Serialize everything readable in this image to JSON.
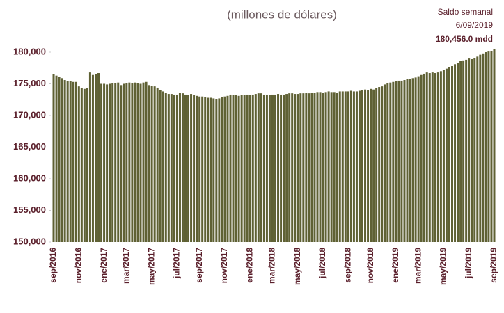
{
  "chart_data": {
    "type": "bar",
    "title": "(millones de dólares)",
    "annotations": [
      "Saldo semanal",
      "6/09/2019",
      "180,456.0 mdd"
    ],
    "color": "#5f6134",
    "categories": [
      "sep/2016",
      null,
      null,
      null,
      null,
      null,
      null,
      null,
      null,
      "nov/2016",
      null,
      null,
      null,
      null,
      null,
      null,
      null,
      null,
      "ene/2017",
      null,
      null,
      null,
      null,
      null,
      null,
      null,
      "mar/2017",
      null,
      null,
      null,
      null,
      null,
      null,
      null,
      null,
      "may/2017",
      null,
      null,
      null,
      null,
      null,
      null,
      null,
      null,
      "jul/2017",
      null,
      null,
      null,
      null,
      null,
      null,
      null,
      "sep/2017",
      null,
      null,
      null,
      null,
      null,
      null,
      null,
      null,
      "nov/2017",
      null,
      null,
      null,
      null,
      null,
      null,
      null,
      null,
      "ene/2018",
      null,
      null,
      null,
      null,
      null,
      null,
      null,
      "mar/2018",
      null,
      null,
      null,
      null,
      null,
      null,
      null,
      null,
      "may/2018",
      null,
      null,
      null,
      null,
      null,
      null,
      null,
      null,
      "jul/2018",
      null,
      null,
      null,
      null,
      null,
      null,
      null,
      null,
      "sep/2018",
      null,
      null,
      null,
      null,
      null,
      null,
      null,
      "nov/2018",
      null,
      null,
      null,
      null,
      null,
      null,
      null,
      null,
      "ene/2019",
      null,
      null,
      null,
      null,
      null,
      null,
      null,
      "mar/2019",
      null,
      null,
      null,
      null,
      null,
      null,
      null,
      null,
      "may/2019",
      null,
      null,
      null,
      null,
      null,
      null,
      null,
      null,
      "jul/2019",
      null,
      null,
      null,
      null,
      null,
      null,
      null,
      null,
      "sep/2019"
    ],
    "values": [
      176500,
      176300,
      176100,
      175900,
      175600,
      175400,
      175400,
      175300,
      175300,
      174600,
      174300,
      174200,
      174300,
      176800,
      176400,
      176500,
      176700,
      175000,
      175000,
      174900,
      175000,
      175100,
      175100,
      175200,
      174800,
      175000,
      175100,
      175200,
      175100,
      175200,
      175100,
      175000,
      175200,
      175300,
      174800,
      174700,
      174600,
      174400,
      174000,
      173800,
      173600,
      173400,
      173400,
      173300,
      173300,
      173600,
      173500,
      173300,
      173200,
      173400,
      173200,
      173100,
      173000,
      173000,
      172900,
      172800,
      172800,
      172700,
      172600,
      172700,
      172900,
      173000,
      173100,
      173300,
      173200,
      173200,
      173100,
      173200,
      173200,
      173300,
      173200,
      173300,
      173400,
      173500,
      173500,
      173300,
      173300,
      173200,
      173300,
      173300,
      173400,
      173300,
      173300,
      173400,
      173500,
      173500,
      173400,
      173400,
      173500,
      173500,
      173600,
      173500,
      173600,
      173600,
      173700,
      173700,
      173600,
      173700,
      173800,
      173700,
      173700,
      173600,
      173800,
      173800,
      173800,
      173800,
      173900,
      173800,
      173800,
      173900,
      174000,
      174100,
      174000,
      174200,
      174100,
      174300,
      174500,
      174600,
      174900,
      175100,
      175200,
      175300,
      175400,
      175500,
      175500,
      175600,
      175800,
      175800,
      175900,
      176000,
      176200,
      176400,
      176600,
      176800,
      176700,
      176800,
      176700,
      176800,
      177000,
      177200,
      177400,
      177600,
      177800,
      178100,
      178300,
      178600,
      178700,
      178800,
      179000,
      178900,
      179100,
      179300,
      179600,
      179800,
      180000,
      180100,
      180200,
      180456
    ],
    "ylim": [
      150000,
      180500
    ],
    "yticks": [
      {
        "value": 150000,
        "label": "150,000"
      },
      {
        "value": 155000,
        "label": "155,000"
      },
      {
        "value": 160000,
        "label": "160,000"
      },
      {
        "value": 165000,
        "label": "165,000"
      },
      {
        "value": 170000,
        "label": "170,000"
      },
      {
        "value": 175000,
        "label": "175,000"
      },
      {
        "value": 180000,
        "label": "180,000"
      }
    ],
    "grid": false
  }
}
